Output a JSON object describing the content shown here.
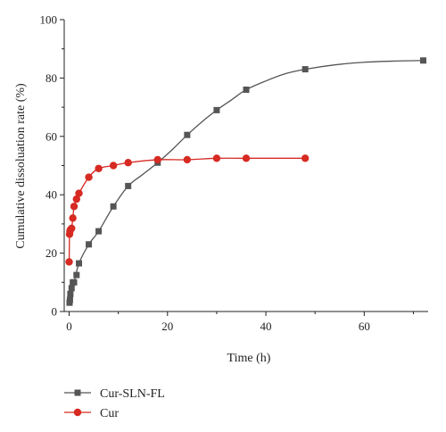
{
  "chart_data": {
    "type": "line",
    "xlabel": "Time (h)",
    "ylabel": "Cumulative dissoluation rate (%)",
    "xlim": [
      -1,
      73
    ],
    "ylim": [
      0,
      100
    ],
    "xticks": [
      0,
      20,
      40,
      60
    ],
    "yticks": [
      0,
      20,
      40,
      60,
      80,
      100
    ],
    "grid": false,
    "legend_position": "bottom-left",
    "series": [
      {
        "name": "Cur-SLN-FL",
        "color": "#555555",
        "marker": "square",
        "x": [
          0.083,
          0.167,
          0.25,
          0.5,
          0.75,
          1,
          1.5,
          2,
          4,
          6,
          9,
          12,
          18,
          24,
          30,
          36,
          48,
          72
        ],
        "y": [
          3,
          4,
          6,
          8,
          10,
          10,
          12.5,
          16.5,
          23,
          27.5,
          36,
          43,
          51,
          60.5,
          69,
          76,
          83,
          86
        ],
        "curve": {
          "x": [
            0.083,
            0.5,
            1,
            2,
            4,
            6,
            9,
            12,
            15,
            18,
            21,
            24,
            27,
            30,
            33,
            36,
            40,
            44,
            48,
            54,
            60,
            66,
            72
          ],
          "y": [
            3,
            8,
            10,
            16.5,
            23,
            27.5,
            36,
            43,
            47,
            51,
            55.5,
            60.5,
            65,
            69,
            72.5,
            76,
            79,
            81.5,
            83,
            84.5,
            85.4,
            85.8,
            86
          ]
        }
      },
      {
        "name": "Cur",
        "color": "#d62a22",
        "marker": "circle",
        "x": [
          0,
          0.083,
          0.167,
          0.25,
          0.5,
          0.75,
          1,
          1.5,
          2,
          4,
          6,
          9,
          12,
          18,
          24,
          30,
          36,
          48
        ],
        "y": [
          17,
          26.5,
          27.5,
          28,
          28.5,
          32,
          36,
          38.5,
          40.5,
          46,
          49,
          50,
          51,
          52,
          52,
          52.5,
          52.5,
          52.5
        ],
        "curve": {
          "x": [
            0,
            0.083,
            0.25,
            0.5,
            0.75,
            1,
            1.5,
            2,
            4,
            6,
            9,
            12,
            18,
            24,
            30,
            36,
            48
          ],
          "y": [
            17,
            26.5,
            28,
            28.5,
            32,
            36,
            38.5,
            40.5,
            46,
            49,
            50,
            51,
            52,
            52,
            52.5,
            52.5,
            52.5
          ]
        }
      }
    ]
  }
}
